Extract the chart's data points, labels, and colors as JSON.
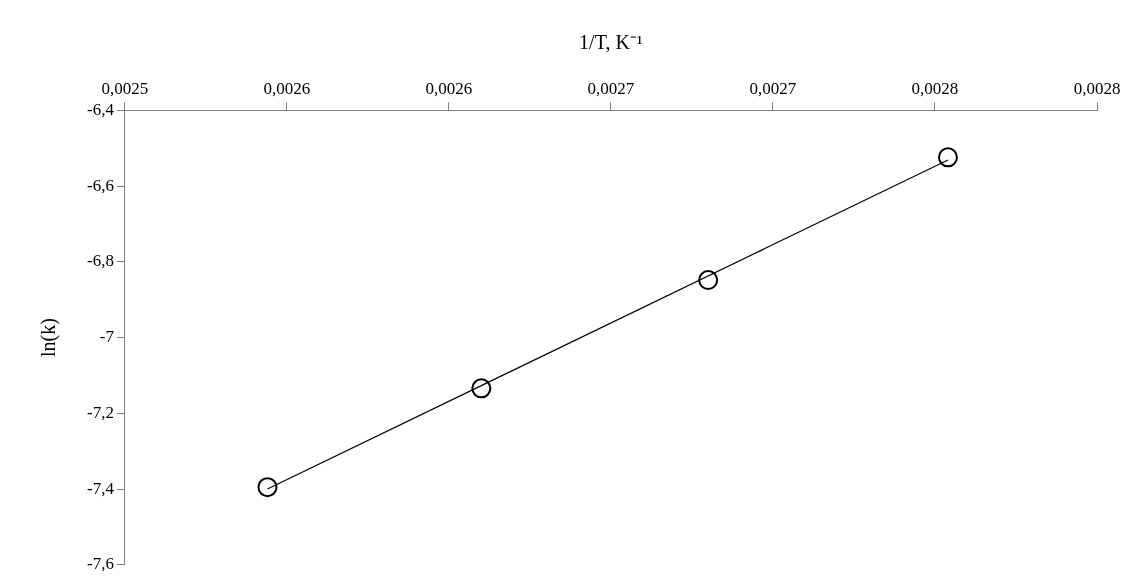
{
  "chart_data": {
    "type": "scatter",
    "xlabel": "1/T, K⁻¹",
    "ylabel": "ln(k)",
    "xlim": [
      0.0025,
      0.0028
    ],
    "xticks": [
      {
        "value": 0.0025,
        "label": "0,0025"
      },
      {
        "value": 0.00255,
        "label": "0,0026"
      },
      {
        "value": 0.0026,
        "label": "0,0026"
      },
      {
        "value": 0.00265,
        "label": "0,0027"
      },
      {
        "value": 0.0027,
        "label": "0,0027"
      },
      {
        "value": 0.00275,
        "label": "0,0028"
      },
      {
        "value": 0.0028,
        "label": "0,0028"
      }
    ],
    "ylim": [
      -7.6,
      -6.4
    ],
    "yticks": [
      {
        "value": -7.6,
        "label": "-7,6"
      },
      {
        "value": -7.4,
        "label": "-7,4"
      },
      {
        "value": -7.2,
        "label": "-7,2"
      },
      {
        "value": -7,
        "label": "-7"
      },
      {
        "value": -6.8,
        "label": "-6,8"
      },
      {
        "value": -6.6,
        "label": "-6,6"
      },
      {
        "value": -6.4,
        "label": "-6,4"
      }
    ],
    "grid": false,
    "series": [
      {
        "color": "#000000",
        "marker": "circle",
        "x": [
          0.002544,
          0.00261,
          0.00268,
          0.002754
        ],
        "values": [
          -7.395,
          -7.134,
          -6.848,
          -6.524
        ]
      },
      {
        "type": "line",
        "color": "#000000",
        "marker": "none",
        "line_style": "solid",
        "x": [
          0.002544,
          0.002754
        ],
        "values": [
          -7.4,
          -6.531
        ]
      }
    ]
  }
}
